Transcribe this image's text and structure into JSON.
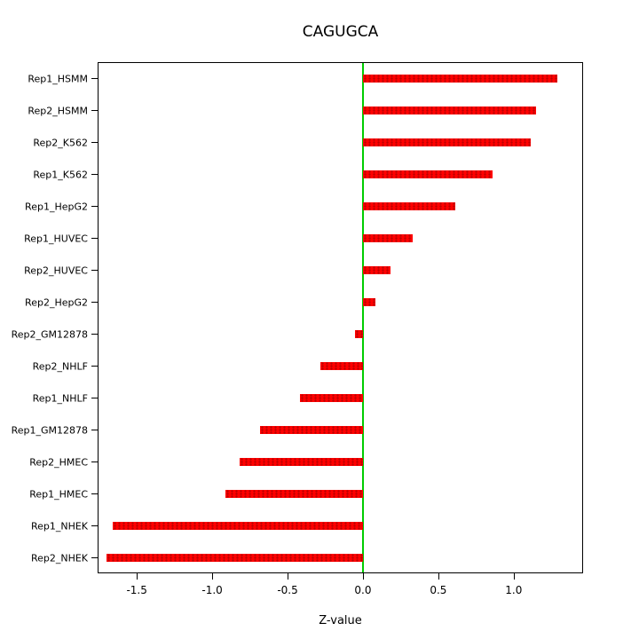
{
  "chart_data": {
    "type": "bar",
    "orientation": "horizontal",
    "title": "CAGUGCA",
    "xlabel": "Z-value",
    "ylabel": "",
    "categories": [
      "Rep1_HSMM",
      "Rep2_HSMM",
      "Rep2_K562",
      "Rep1_K562",
      "Rep1_HepG2",
      "Rep1_HUVEC",
      "Rep2_HUVEC",
      "Rep2_HepG2",
      "Rep2_GM12878",
      "Rep2_NHLF",
      "Rep1_NHLF",
      "Rep1_GM12878",
      "Rep2_HMEC",
      "Rep1_HMEC",
      "Rep1_NHEK",
      "Rep2_NHEK"
    ],
    "values": [
      1.29,
      1.15,
      1.11,
      0.86,
      0.61,
      0.33,
      0.18,
      0.08,
      -0.05,
      -0.28,
      -0.42,
      -0.68,
      -0.82,
      -0.91,
      -1.66,
      -1.7
    ],
    "xlim": [
      -1.76,
      1.46
    ],
    "x_ticks": [
      -1.5,
      -1.0,
      -0.5,
      0.0,
      0.5,
      1.0
    ],
    "x_tick_labels": [
      "-1.5",
      "-1.0",
      "-0.5",
      "0.0",
      "0.5",
      "1.0"
    ],
    "grid": false,
    "legend": "none",
    "colors": {
      "bar": "#ff0000",
      "bar_dot": "#bb0000",
      "zero_line": "#00cc00",
      "axis": "#000000",
      "background": "#ffffff"
    }
  }
}
